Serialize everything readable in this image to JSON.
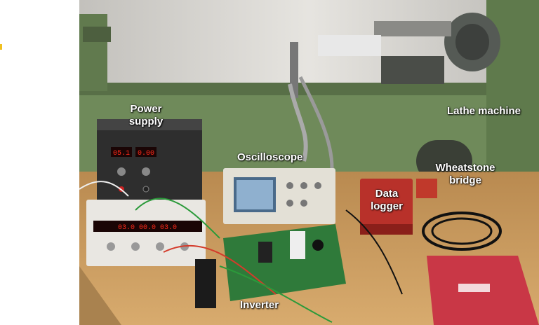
{
  "labels": {
    "power_supply": "Power\nsupply",
    "lathe_machine": "Lathe machine",
    "oscilloscope": "Oscilloscope",
    "wheatstone_bridge": "Wheatstone\nbridge",
    "data_logger": "Data\nlogger",
    "inverter": "Inverter"
  },
  "displays": {
    "supply_left": "05.1",
    "supply_right": "0.00",
    "triple_supply": "03.0 00.0 03.0"
  },
  "colors": {
    "wall": "#d9d6cf",
    "lathe_green": "#6f8a5a",
    "bench": "#c99a5c",
    "power_supply_body": "#2e2e2e",
    "triple_supply_body": "#e9e7e2",
    "oscilloscope_body": "#e3e0d6",
    "pcb": "#2f7a3a",
    "data_logger": "#b8312a",
    "folder": "#c93746",
    "led_red": "#ff2a1a"
  }
}
